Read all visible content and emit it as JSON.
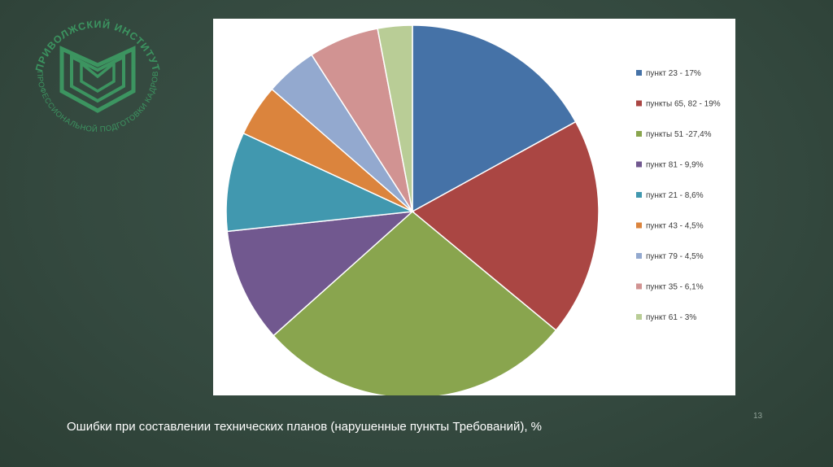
{
  "logo": {
    "arc_top_text": "ПРИВОЛЖСКИЙ ИНСТИТУТ",
    "arc_bottom_text": "ПРОФЕССИОНАЛЬНОЙ ПОДГОТОВКИ КАДРОВ",
    "color": "#3fae6c"
  },
  "chart_data": {
    "type": "pie",
    "categories": [
      "пункт 23",
      "пункты 65, 82",
      "пункты 51",
      "пункт 81",
      "пункт 21",
      "пункт 43",
      "пункт 79",
      "пункт 35",
      "пункт 61"
    ],
    "values": [
      17,
      19,
      27.4,
      9.9,
      8.6,
      4.5,
      4.5,
      6.1,
      3
    ],
    "colors": [
      "#4572a7",
      "#aa4643",
      "#89a54e",
      "#71588f",
      "#4198af",
      "#db843d",
      "#93a9cf",
      "#d19392",
      "#b9cd96"
    ],
    "legend_labels": [
      "пункт 23 - 17%",
      "пункты 65, 82 - 19%",
      "пункты 51 -27,4%",
      "пункт 81 - 9,9%",
      "пункт 21 - 8,6%",
      "пункт 43 - 4,5%",
      "пункт 79 - 4,5%",
      "пункт 35 - 6,1%",
      "пункт 61 - 3%"
    ],
    "legend_position": "right"
  },
  "slide": {
    "caption": "Ошибки при составлении технических планов (нарушенные пункты Требований), %",
    "page_number": "13"
  }
}
